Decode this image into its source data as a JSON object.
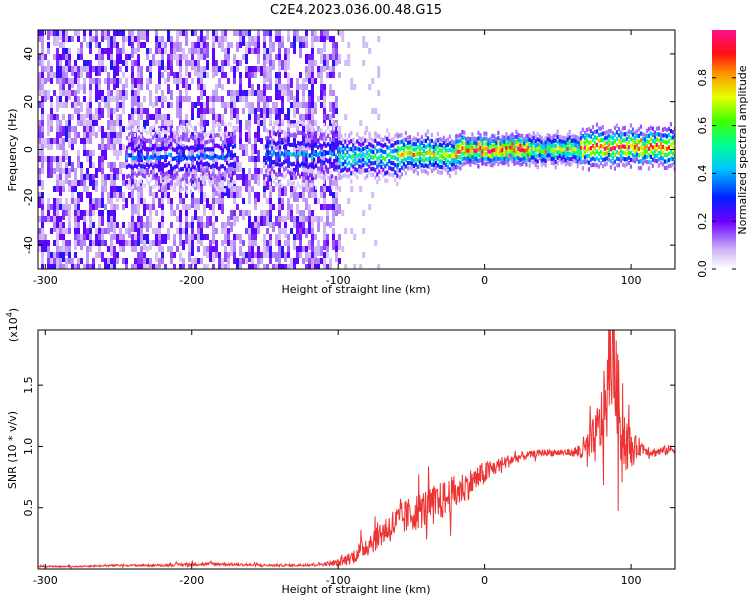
{
  "figure_title": "C2E4.2023.036.00.48.G15",
  "colors": {
    "snr_line": "#ee3333",
    "frame": "#000000",
    "colormap": [
      "#ffffff",
      "#cdb4f5",
      "#7b2ff0",
      "#4a00d8",
      "#0030ff",
      "#00c8ff",
      "#00ff80",
      "#60ff00",
      "#f0ff00",
      "#ff9000",
      "#ff1010",
      "#ff1090"
    ]
  },
  "chart_data": [
    {
      "type": "heatmap",
      "title": "",
      "xlabel": "Height of straight line (km)",
      "ylabel": "Frequency (Hz)",
      "xlim": [
        -305,
        130
      ],
      "ylim": [
        -50,
        50
      ],
      "xticks": [
        {
          "value": -300,
          "label": "-300"
        },
        {
          "value": -200,
          "label": "-200"
        },
        {
          "value": -100,
          "label": "-100"
        },
        {
          "value": 0,
          "label": "0"
        },
        {
          "value": 100,
          "label": "100"
        }
      ],
      "yticks": [
        {
          "value": -40,
          "label": "-40"
        },
        {
          "value": -20,
          "label": "-20"
        },
        {
          "value": 0,
          "label": "0"
        },
        {
          "value": 20,
          "label": "20"
        },
        {
          "value": 40,
          "label": "40"
        }
      ],
      "colorbar": {
        "label": "Normalized spectral amplitude",
        "range": [
          0,
          1
        ],
        "ticks": [
          {
            "value": 0.0,
            "label": "0.0"
          },
          {
            "value": 0.2,
            "label": "0.2"
          },
          {
            "value": 0.4,
            "label": "0.4"
          },
          {
            "value": 0.6,
            "label": "0.6"
          },
          {
            "value": 0.8,
            "label": "0.8"
          }
        ]
      },
      "noise_region": {
        "x_from": -305,
        "x_to": -100,
        "frequency_from": -50,
        "frequency_to": 50,
        "amplitude": 0.15
      },
      "ridge": [
        {
          "x_from": -245,
          "x_to": -170,
          "center_freq": -3,
          "halfwidth": 4,
          "amplitude": 0.35
        },
        {
          "x_from": -150,
          "x_to": -100,
          "center_freq": -2,
          "halfwidth": 4,
          "amplitude": 0.38
        },
        {
          "x_from": -100,
          "x_to": -60,
          "center_freq": -3,
          "halfwidth": 3,
          "amplitude": 0.55
        },
        {
          "x_from": -60,
          "x_to": -20,
          "center_freq": -2,
          "halfwidth": 2.5,
          "amplitude": 0.75
        },
        {
          "x_from": -20,
          "x_to": 30,
          "center_freq": 0,
          "halfwidth": 2,
          "amplitude": 0.95
        },
        {
          "x_from": 30,
          "x_to": 65,
          "center_freq": 0,
          "halfwidth": 2,
          "amplitude": 0.7
        },
        {
          "x_from": 65,
          "x_to": 130,
          "center_freq": 1,
          "halfwidth": 2.5,
          "amplitude": 0.9
        }
      ]
    },
    {
      "type": "line",
      "title": "",
      "xlabel": "Height of straight line (km)",
      "ylabel": "SNR (10 * v/v)",
      "y_multiplier_label": "(x10",
      "y_multiplier_exponent": "4",
      "y_multiplier_close": ")",
      "xlim": [
        -305,
        130
      ],
      "ylim": [
        0,
        1.95
      ],
      "xticks": [
        {
          "value": -300,
          "label": "-300"
        },
        {
          "value": -200,
          "label": "-200"
        },
        {
          "value": -100,
          "label": "-100"
        },
        {
          "value": 0,
          "label": "0"
        },
        {
          "value": 100,
          "label": "100"
        }
      ],
      "yticks": [
        {
          "value": 0.5,
          "label": "0.5"
        },
        {
          "value": 1.0,
          "label": "1.0"
        },
        {
          "value": 1.5,
          "label": "1.5"
        }
      ],
      "series": [
        {
          "x": [
            -305,
            -280,
            -250,
            -220,
            -200,
            -180,
            -150,
            -130,
            -110,
            -100,
            -90,
            -80,
            -70,
            -60,
            -50,
            -40,
            -30,
            -20,
            -10,
            0,
            10,
            20,
            30,
            40,
            50,
            60,
            65,
            70,
            75,
            80,
            85,
            88,
            90,
            95,
            100,
            105,
            110,
            115,
            120,
            130
          ],
          "values": [
            0.02,
            0.02,
            0.03,
            0.03,
            0.04,
            0.04,
            0.03,
            0.03,
            0.04,
            0.05,
            0.1,
            0.2,
            0.3,
            0.38,
            0.45,
            0.5,
            0.55,
            0.62,
            0.7,
            0.78,
            0.85,
            0.9,
            0.93,
            0.95,
            0.95,
            0.95,
            0.96,
            0.98,
            1.05,
            1.2,
            1.5,
            1.9,
            1.4,
            1.1,
            0.95,
            1.0,
            0.98,
            0.95,
            0.96,
            0.98
          ],
          "noise_amplitude": [
            0.005,
            0.005,
            0.008,
            0.01,
            0.015,
            0.012,
            0.01,
            0.01,
            0.015,
            0.03,
            0.06,
            0.1,
            0.12,
            0.14,
            0.15,
            0.16,
            0.16,
            0.15,
            0.12,
            0.1,
            0.06,
            0.05,
            0.03,
            0.03,
            0.03,
            0.03,
            0.08,
            0.15,
            0.2,
            0.3,
            0.4,
            0.5,
            0.45,
            0.3,
            0.15,
            0.08,
            0.05,
            0.04,
            0.04,
            0.04
          ]
        }
      ]
    }
  ]
}
